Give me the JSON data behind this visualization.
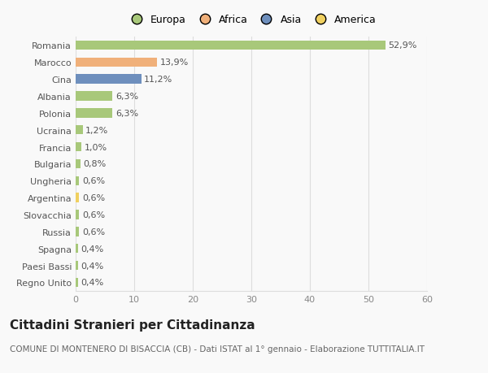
{
  "countries": [
    "Romania",
    "Marocco",
    "Cina",
    "Albania",
    "Polonia",
    "Ucraina",
    "Francia",
    "Bulgaria",
    "Ungheria",
    "Argentina",
    "Slovacchia",
    "Russia",
    "Spagna",
    "Paesi Bassi",
    "Regno Unito"
  ],
  "values": [
    52.9,
    13.9,
    11.2,
    6.3,
    6.3,
    1.2,
    1.0,
    0.8,
    0.6,
    0.6,
    0.6,
    0.6,
    0.4,
    0.4,
    0.4
  ],
  "labels": [
    "52,9%",
    "13,9%",
    "11,2%",
    "6,3%",
    "6,3%",
    "1,2%",
    "1,0%",
    "0,8%",
    "0,6%",
    "0,6%",
    "0,6%",
    "0,6%",
    "0,4%",
    "0,4%",
    "0,4%"
  ],
  "colors": [
    "#a8c87a",
    "#f0b07a",
    "#6e8fbd",
    "#a8c87a",
    "#a8c87a",
    "#a8c87a",
    "#a8c87a",
    "#a8c87a",
    "#a8c87a",
    "#f0d060",
    "#a8c87a",
    "#a8c87a",
    "#a8c87a",
    "#a8c87a",
    "#a8c87a"
  ],
  "legend_labels": [
    "Europa",
    "Africa",
    "Asia",
    "America"
  ],
  "legend_colors": [
    "#a8c87a",
    "#f0b07a",
    "#6e8fbd",
    "#f0d060"
  ],
  "title": "Cittadini Stranieri per Cittadinanza",
  "subtitle": "COMUNE DI MONTENERO DI BISACCIA (CB) - Dati ISTAT al 1° gennaio - Elaborazione TUTTITALIA.IT",
  "xlim": [
    0,
    60
  ],
  "xticks": [
    0,
    10,
    20,
    30,
    40,
    50,
    60
  ],
  "background_color": "#f9f9f9",
  "bar_height": 0.55,
  "title_fontsize": 11,
  "subtitle_fontsize": 7.5,
  "label_fontsize": 8,
  "tick_fontsize": 8,
  "legend_fontsize": 9
}
